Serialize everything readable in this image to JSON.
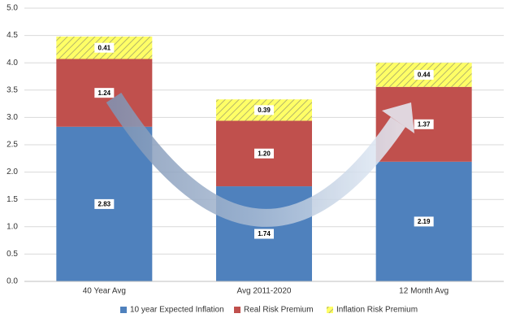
{
  "chart_data": {
    "type": "stacked-bar",
    "categories": [
      "40 Year Avg",
      "Avg 2011-2020",
      "12 Month Avg"
    ],
    "series": [
      {
        "name": "10 year Expected Inflation",
        "color": "#4f81bd",
        "values": [
          2.83,
          1.74,
          2.19
        ],
        "value_labels": [
          "2.83",
          "1.74",
          "2.19"
        ]
      },
      {
        "name": "Real Risk Premium",
        "color": "#c0504d",
        "values": [
          1.24,
          1.2,
          1.37
        ],
        "value_labels": [
          "1.24",
          "1.20",
          "1.37"
        ]
      },
      {
        "name": "Inflation Risk Premium",
        "color": "#ffff66",
        "pattern": "hatch",
        "values": [
          0.41,
          0.39,
          0.44
        ],
        "value_labels": [
          "0.41",
          "0.39",
          "0.44"
        ]
      }
    ],
    "ylim": [
      0,
      5
    ],
    "yticks": [
      {
        "value": 0,
        "label": "0.0"
      },
      {
        "value": 0.5,
        "label": "0.5"
      },
      {
        "value": 1,
        "label": "1.0"
      },
      {
        "value": 1.5,
        "label": "1.5"
      },
      {
        "value": 2,
        "label": "2.0"
      },
      {
        "value": 2.5,
        "label": "2.5"
      },
      {
        "value": 3,
        "label": "3.0"
      },
      {
        "value": 3.5,
        "label": "3.5"
      },
      {
        "value": 4,
        "label": "4.0"
      },
      {
        "value": 4.5,
        "label": "4.5"
      },
      {
        "value": 5,
        "label": "5.0"
      }
    ],
    "grid": true,
    "legend": "bottom"
  }
}
